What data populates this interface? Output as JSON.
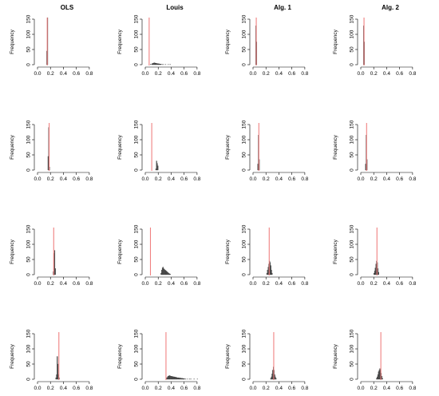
{
  "column_titles": [
    "OLS",
    "Louis",
    "Alg. 1",
    "Alg. 2"
  ],
  "colors": {
    "bar": "#555555",
    "bar_edge": "#333333",
    "reference_line": "#f08080",
    "axis": "#000000"
  },
  "chart_data": {
    "type": "histogram-grid",
    "ylabel": "Frequency",
    "xlim": [
      0,
      0.9
    ],
    "xticks": [
      "0.0",
      "0.2",
      "0.4",
      "0.6",
      "0.8"
    ],
    "ylim": [
      0,
      150
    ],
    "yticks": [
      "0",
      "50",
      "100",
      "150"
    ],
    "bin_width": 0.01,
    "panels": [
      {
        "row": 0,
        "col": 0,
        "reference": 0.15,
        "bins": [
          [
            0.14,
            45
          ],
          [
            0.15,
            155
          ]
        ]
      },
      {
        "row": 0,
        "col": 1,
        "reference": 0.06,
        "bins": [
          [
            0.08,
            2
          ],
          [
            0.1,
            3
          ],
          [
            0.11,
            4
          ],
          [
            0.12,
            5
          ],
          [
            0.13,
            6
          ],
          [
            0.14,
            6
          ],
          [
            0.15,
            5
          ],
          [
            0.16,
            5
          ],
          [
            0.17,
            4
          ],
          [
            0.18,
            4
          ],
          [
            0.19,
            3
          ],
          [
            0.2,
            3
          ],
          [
            0.21,
            3
          ],
          [
            0.22,
            2
          ],
          [
            0.23,
            2
          ],
          [
            0.24,
            2
          ],
          [
            0.26,
            1
          ],
          [
            0.28,
            1
          ],
          [
            0.31,
            1
          ],
          [
            0.35,
            1
          ],
          [
            0.38,
            1
          ]
        ]
      },
      {
        "row": 0,
        "col": 2,
        "reference": 0.05,
        "bins": [
          [
            0.04,
            128
          ],
          [
            0.05,
            75
          ]
        ]
      },
      {
        "row": 0,
        "col": 3,
        "reference": 0.05,
        "bins": [
          [
            0.04,
            128
          ],
          [
            0.05,
            75
          ]
        ]
      },
      {
        "row": 1,
        "col": 0,
        "reference": 0.18,
        "bins": [
          [
            0.16,
            45
          ],
          [
            0.17,
            140
          ],
          [
            0.18,
            10
          ]
        ]
      },
      {
        "row": 1,
        "col": 1,
        "reference": 0.1,
        "bins": [
          [
            0.16,
            4
          ],
          [
            0.17,
            30
          ],
          [
            0.18,
            22
          ],
          [
            0.19,
            14
          ]
        ]
      },
      {
        "row": 1,
        "col": 2,
        "reference": 0.09,
        "bins": [
          [
            0.07,
            20
          ],
          [
            0.08,
            115
          ],
          [
            0.09,
            35
          ]
        ]
      },
      {
        "row": 1,
        "col": 3,
        "reference": 0.09,
        "bins": [
          [
            0.07,
            20
          ],
          [
            0.08,
            115
          ],
          [
            0.09,
            35
          ]
        ]
      },
      {
        "row": 2,
        "col": 0,
        "reference": 0.25,
        "bins": [
          [
            0.24,
            10
          ],
          [
            0.25,
            70
          ],
          [
            0.26,
            80
          ],
          [
            0.27,
            20
          ]
        ]
      },
      {
        "row": 2,
        "col": 1,
        "reference": 0.08,
        "bins": [
          [
            0.24,
            5
          ],
          [
            0.25,
            15
          ],
          [
            0.26,
            22
          ],
          [
            0.27,
            25
          ],
          [
            0.28,
            20
          ],
          [
            0.29,
            18
          ],
          [
            0.3,
            15
          ],
          [
            0.31,
            14
          ],
          [
            0.32,
            12
          ],
          [
            0.33,
            10
          ],
          [
            0.34,
            8
          ],
          [
            0.35,
            6
          ],
          [
            0.36,
            4
          ],
          [
            0.37,
            3
          ],
          [
            0.38,
            2
          ]
        ]
      },
      {
        "row": 2,
        "col": 2,
        "reference": 0.25,
        "bins": [
          [
            0.21,
            5
          ],
          [
            0.22,
            15
          ],
          [
            0.23,
            25
          ],
          [
            0.24,
            35
          ],
          [
            0.25,
            45
          ],
          [
            0.26,
            40
          ],
          [
            0.27,
            30
          ],
          [
            0.28,
            15
          ],
          [
            0.29,
            5
          ]
        ]
      },
      {
        "row": 2,
        "col": 3,
        "reference": 0.25,
        "bins": [
          [
            0.2,
            5
          ],
          [
            0.21,
            12
          ],
          [
            0.22,
            22
          ],
          [
            0.23,
            35
          ],
          [
            0.24,
            45
          ],
          [
            0.25,
            40
          ],
          [
            0.26,
            20
          ],
          [
            0.27,
            8
          ]
        ]
      },
      {
        "row": 3,
        "col": 0,
        "reference": 0.33,
        "bins": [
          [
            0.28,
            5
          ],
          [
            0.29,
            15
          ],
          [
            0.3,
            75
          ],
          [
            0.31,
            50
          ],
          [
            0.32,
            15
          ],
          [
            0.33,
            5
          ]
        ]
      },
      {
        "row": 3,
        "col": 1,
        "reference": 0.32,
        "bins": [
          [
            0.33,
            5
          ],
          [
            0.34,
            8
          ],
          [
            0.35,
            10
          ],
          [
            0.36,
            11
          ],
          [
            0.37,
            12
          ],
          [
            0.38,
            11
          ],
          [
            0.39,
            10
          ],
          [
            0.4,
            10
          ],
          [
            0.41,
            9
          ],
          [
            0.42,
            9
          ],
          [
            0.43,
            8
          ],
          [
            0.44,
            8
          ],
          [
            0.45,
            7
          ],
          [
            0.46,
            7
          ],
          [
            0.47,
            6
          ],
          [
            0.48,
            6
          ],
          [
            0.49,
            5
          ],
          [
            0.5,
            5
          ],
          [
            0.51,
            5
          ],
          [
            0.52,
            4
          ],
          [
            0.53,
            4
          ],
          [
            0.54,
            4
          ],
          [
            0.55,
            3
          ],
          [
            0.56,
            3
          ],
          [
            0.57,
            3
          ],
          [
            0.58,
            2
          ],
          [
            0.59,
            2
          ],
          [
            0.6,
            2
          ],
          [
            0.62,
            1
          ],
          [
            0.65,
            1
          ],
          [
            0.68,
            1
          ],
          [
            0.7,
            1
          ],
          [
            0.75,
            1
          ],
          [
            0.8,
            1
          ]
        ]
      },
      {
        "row": 3,
        "col": 2,
        "reference": 0.32,
        "bins": [
          [
            0.27,
            3
          ],
          [
            0.28,
            8
          ],
          [
            0.29,
            18
          ],
          [
            0.3,
            30
          ],
          [
            0.31,
            40
          ],
          [
            0.32,
            30
          ],
          [
            0.33,
            15
          ],
          [
            0.34,
            8
          ],
          [
            0.35,
            3
          ]
        ]
      },
      {
        "row": 3,
        "col": 3,
        "reference": 0.31,
        "bins": [
          [
            0.24,
            3
          ],
          [
            0.25,
            8
          ],
          [
            0.26,
            15
          ],
          [
            0.27,
            25
          ],
          [
            0.28,
            30
          ],
          [
            0.29,
            35
          ],
          [
            0.3,
            30
          ],
          [
            0.31,
            20
          ],
          [
            0.32,
            10
          ],
          [
            0.33,
            3
          ]
        ]
      }
    ]
  }
}
